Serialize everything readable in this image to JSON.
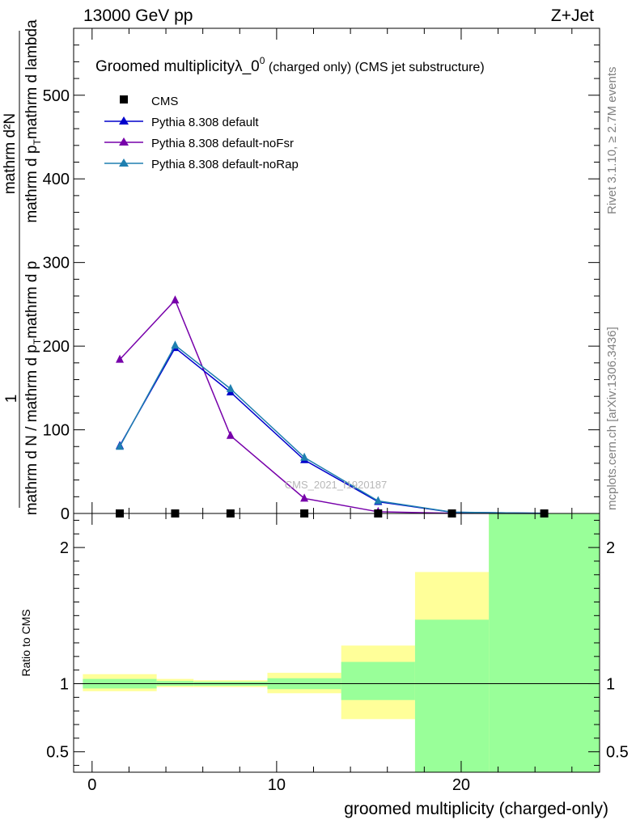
{
  "header": {
    "left_label": "13000 GeV pp",
    "right_label": "Z+Jet"
  },
  "side": {
    "rivet": "Rivet 3.1.10, ≥ 2.7M events",
    "mcplots": "mcplots.cern.ch [arXiv:1306.3436]"
  },
  "watermark": "CMS_2021_I1920187",
  "colors": {
    "cms": "#000000",
    "default": "#0000cc",
    "noFsr": "#7700aa",
    "noRap": "#1f7fb0",
    "band_yellow": "#ffff99",
    "band_green": "#99ff99"
  },
  "chart_data": [
    {
      "type": "line",
      "title": "Groomed multiplicityλ_0",
      "title_sup": "0",
      "title_suffix": " (charged only) (CMS jet substructure)",
      "ylabel": {
        "numerator": "1",
        "numerator_frac": "mathrm d²N",
        "den_part1": "mathrm d N / mathrm d p",
        "den_part2": "mathrm d p",
        "den_part3": "mathrm d lambda",
        "top_part1": "mathrm d p",
        "top_part2": "mathrm d lambda"
      },
      "ylim": [
        0,
        580
      ],
      "yticks": [
        0,
        100,
        200,
        300,
        400,
        500
      ],
      "ytick_labels": [
        "0",
        "100",
        "200",
        "300",
        "400",
        "500"
      ],
      "xlim": [
        -1,
        27.5
      ],
      "x": [
        1.5,
        4.5,
        7.5,
        11.5,
        15.5,
        19.5,
        24.5
      ],
      "series": [
        {
          "name": "CMS",
          "marker": "square",
          "values": [
            0,
            0,
            0,
            0,
            0,
            0,
            0
          ]
        },
        {
          "name": "Pythia 8.308 default",
          "marker": "triangle",
          "values": [
            81,
            198,
            145,
            64,
            14,
            1.5,
            0.2
          ]
        },
        {
          "name": "Pythia 8.308 default-noFsr",
          "marker": "triangle",
          "values": [
            184,
            255,
            93,
            18,
            2,
            0.3,
            0.05
          ]
        },
        {
          "name": "Pythia 8.308 default-noRap",
          "marker": "triangle",
          "values": [
            80,
            201,
            149,
            67,
            15,
            1.6,
            0.2
          ]
        }
      ],
      "legend": "top-left"
    },
    {
      "type": "area",
      "ylabel": "Ratio to CMS",
      "xlabel": "groomed multiplicity (charged-only)",
      "ylim": [
        0.35,
        2.25
      ],
      "yticks": [
        0.5,
        1,
        2
      ],
      "ytick_labels": [
        "0.5",
        "1",
        "2"
      ],
      "xticks": [
        0,
        10,
        20
      ],
      "xtick_labels": [
        "0",
        "10",
        "20"
      ],
      "bins": [
        {
          "lo": -0.5,
          "hi": 3.5,
          "yellow": [
            0.945,
            1.07
          ],
          "green": [
            0.965,
            1.035
          ]
        },
        {
          "lo": 3.5,
          "hi": 5.5,
          "yellow": [
            0.975,
            1.035
          ],
          "green": [
            0.985,
            1.02
          ]
        },
        {
          "lo": 5.5,
          "hi": 9.5,
          "yellow": [
            0.975,
            1.025
          ],
          "green": [
            0.985,
            1.015
          ]
        },
        {
          "lo": 9.5,
          "hi": 13.5,
          "yellow": [
            0.93,
            1.08
          ],
          "green": [
            0.96,
            1.04
          ]
        },
        {
          "lo": 13.5,
          "hi": 17.5,
          "yellow": [
            0.74,
            1.28
          ],
          "green": [
            0.88,
            1.16
          ]
        },
        {
          "lo": 17.5,
          "hi": 21.5,
          "yellow": [
            0.35,
            1.82
          ],
          "green": [
            0.35,
            1.47
          ]
        },
        {
          "lo": 21.5,
          "hi": 27.5,
          "yellow": [
            0.35,
            2.25
          ],
          "green": [
            0.35,
            2.25
          ]
        }
      ]
    }
  ]
}
